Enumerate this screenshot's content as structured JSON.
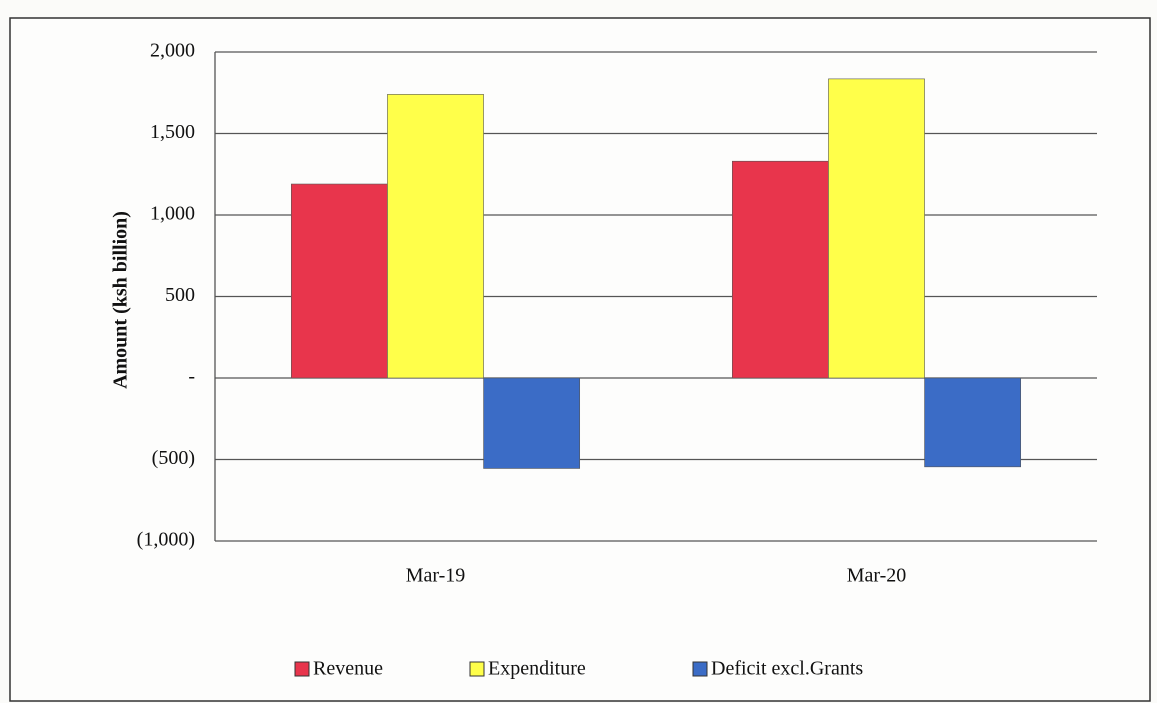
{
  "chart_data": {
    "type": "bar",
    "y_axis_label": "Amount  (ksh billion)",
    "categories": [
      "Mar-19",
      "Mar-20"
    ],
    "series": [
      {
        "name": "Revenue",
        "color": "#e8354c",
        "values": [
          1190,
          1330
        ]
      },
      {
        "name": "Expenditure",
        "color": "#ffff4a",
        "values": [
          1740,
          1835
        ]
      },
      {
        "name": "Deficit excl.Grants",
        "color": "#3b6cc6",
        "values": [
          -555,
          -545
        ]
      }
    ],
    "ylim": [
      -1000,
      2000
    ],
    "yticks": [
      {
        "value": -1000,
        "label": "(1,000)"
      },
      {
        "value": -500,
        "label": "(500)"
      },
      {
        "value": 0,
        "label": "-"
      },
      500,
      {
        "value": 1000,
        "label": "1,000"
      },
      {
        "value": 1500,
        "label": "1,500"
      },
      {
        "value": 2000,
        "label": "2,000"
      }
    ],
    "grid": true,
    "legend": "bottom"
  }
}
